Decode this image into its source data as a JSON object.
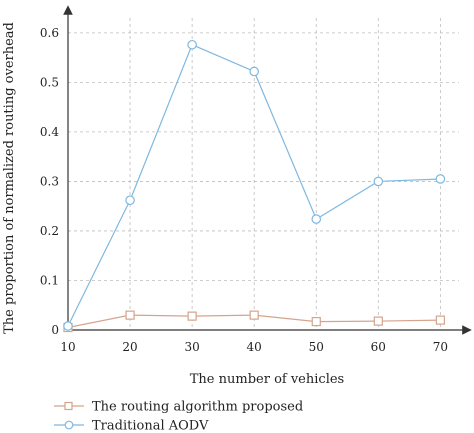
{
  "chart_data": {
    "type": "line",
    "x": [
      10,
      20,
      30,
      40,
      50,
      60,
      70
    ],
    "xlim": [
      10,
      73
    ],
    "ylim": [
      0,
      0.63
    ],
    "xticks": [
      10,
      20,
      30,
      40,
      50,
      60,
      70
    ],
    "yticks": [
      0,
      0.1,
      0.2,
      0.3,
      0.4,
      0.5,
      0.6
    ],
    "xtick_labels": [
      "10",
      "20",
      "30",
      "40",
      "50",
      "60",
      "70"
    ],
    "ytick_labels": [
      "0",
      "0.1",
      "0.2",
      "0.3",
      "0.4",
      "0.5",
      "0.6"
    ],
    "xlabel": "The number of vehicles",
    "ylabel": "The proportion of normalized routing overhead",
    "grid": true,
    "legend_position": "bottom-left",
    "series": [
      {
        "name": "The routing algorithm proposed",
        "marker": "square",
        "color": "#d4a48c",
        "values": [
          0.005,
          0.03,
          0.028,
          0.03,
          0.017,
          0.018,
          0.02
        ]
      },
      {
        "name": "Traditional AODV",
        "marker": "circle",
        "color": "#7fb8e0",
        "values": [
          0.008,
          0.262,
          0.576,
          0.522,
          0.224,
          0.3,
          0.305
        ]
      }
    ]
  }
}
